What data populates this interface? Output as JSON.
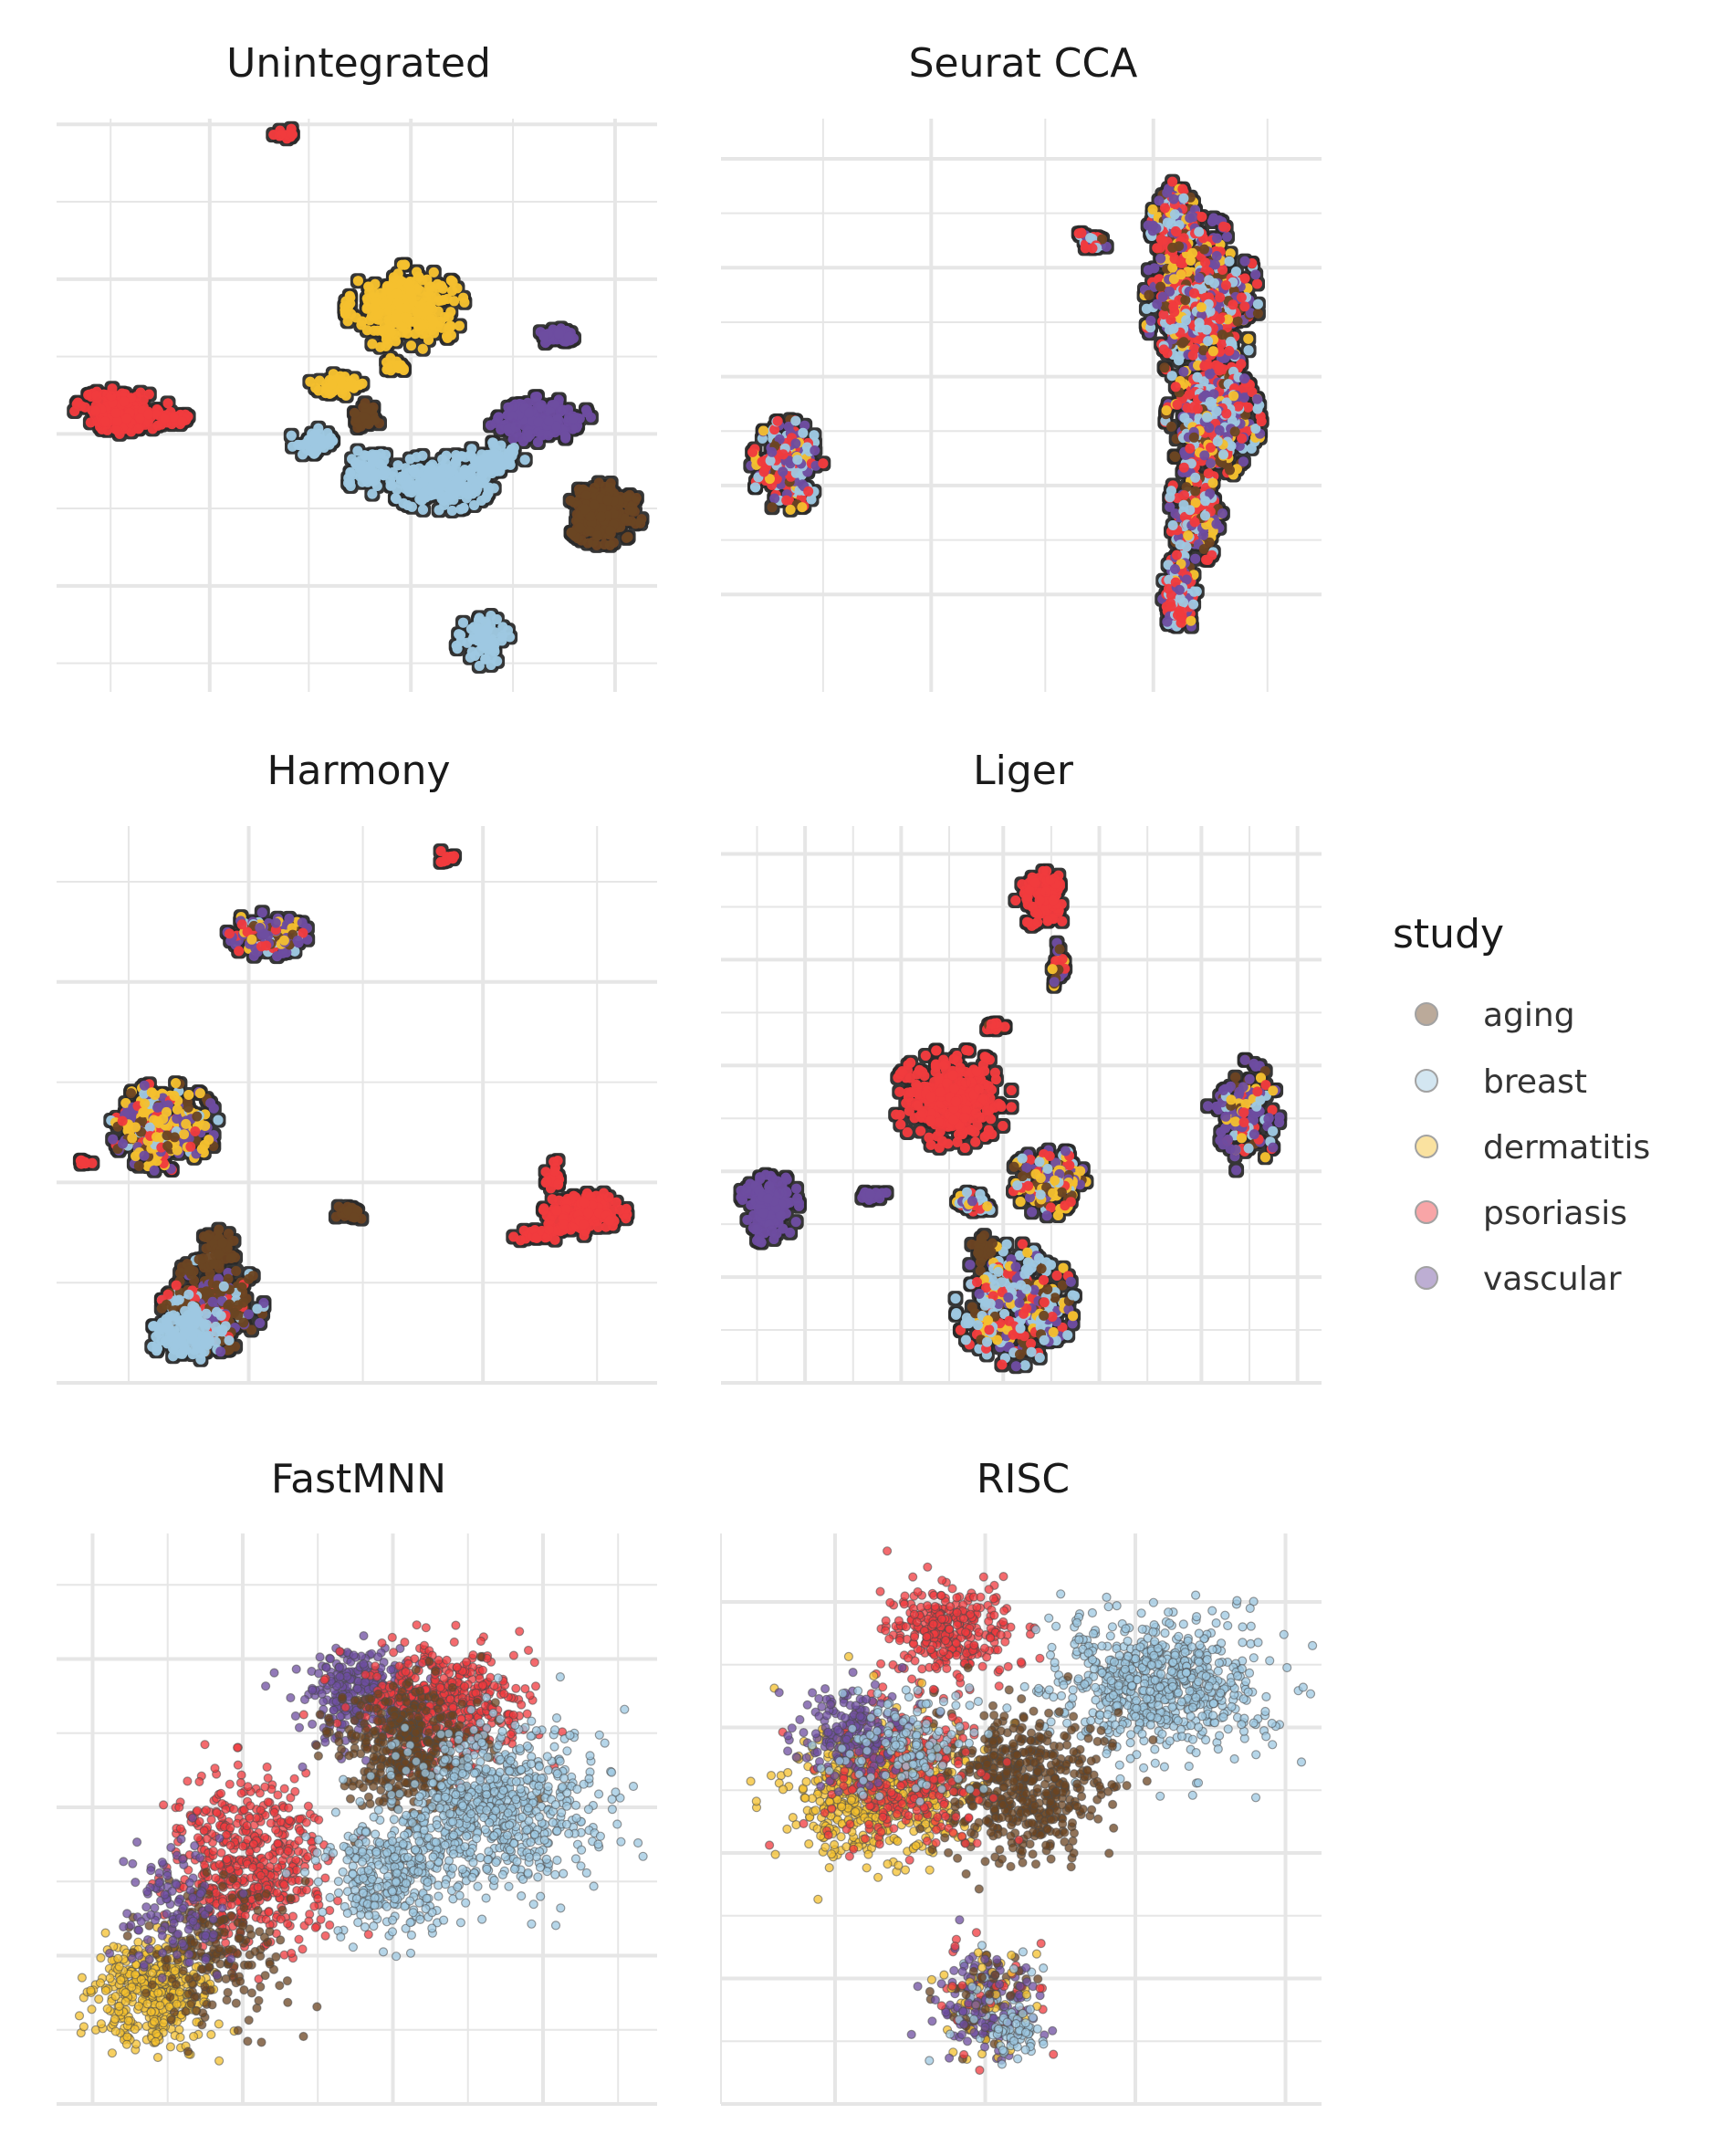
{
  "chart_data": {
    "type": "scatter",
    "description_axes": "UMAP embeddings; axes carry no tick labels",
    "grid": true,
    "legend": {
      "title": "study",
      "placement": "right",
      "entries": [
        {
          "name": "aging",
          "color": "#6b4422"
        },
        {
          "name": "breast",
          "color": "#9ec8e2"
        },
        {
          "name": "dermatitis",
          "color": "#f4c02e"
        },
        {
          "name": "psoriasis",
          "color": "#f03a3e"
        },
        {
          "name": "vascular",
          "color": "#6e4da0"
        }
      ]
    },
    "panels": [
      {
        "title": "Unintegrated",
        "style": "outlined",
        "xlim": [
          0,
          100
        ],
        "ylim": [
          0,
          100
        ],
        "gridx": [
          9,
          25.5,
          42,
          59,
          76,
          93
        ],
        "gridy": [
          5,
          18.5,
          32,
          45,
          58.5,
          72,
          85.5,
          99
        ],
        "majorx": [
          25.5,
          59,
          93
        ],
        "majory": [
          18.5,
          45,
          72,
          99
        ],
        "clusters": [
          {
            "study": "psoriasis",
            "cx": 38,
            "cy": 97.5,
            "rx": 2.5,
            "ry": 1.2,
            "n": 12
          },
          {
            "study": "dermatitis",
            "cx": 58,
            "cy": 67,
            "rx": 10,
            "ry": 7.5,
            "n": 300
          },
          {
            "study": "dermatitis",
            "cx": 47,
            "cy": 53.5,
            "rx": 5,
            "ry": 2,
            "n": 60
          },
          {
            "study": "dermatitis",
            "cx": 56.5,
            "cy": 57,
            "rx": 2.5,
            "ry": 1.3,
            "n": 20
          },
          {
            "study": "vascular",
            "cx": 84,
            "cy": 62,
            "rx": 4,
            "ry": 1.5,
            "n": 40
          },
          {
            "study": "psoriasis",
            "cx": 11,
            "cy": 49,
            "rx": 8,
            "ry": 4,
            "n": 200
          },
          {
            "study": "psoriasis",
            "cx": 20,
            "cy": 47.5,
            "rx": 3,
            "ry": 1,
            "n": 30
          },
          {
            "study": "aging",
            "cx": 51.5,
            "cy": 48,
            "rx": 2.5,
            "ry": 2.5,
            "n": 40
          },
          {
            "study": "vascular",
            "cx": 80.5,
            "cy": 47.5,
            "rx": 8.5,
            "ry": 4,
            "n": 160
          },
          {
            "study": "breast",
            "cx": 43,
            "cy": 43.5,
            "rx": 4.5,
            "ry": 2.5,
            "n": 50
          },
          {
            "study": "breast",
            "cx": 52,
            "cy": 38.5,
            "rx": 4,
            "ry": 4,
            "n": 70
          },
          {
            "study": "breast",
            "cx": 64,
            "cy": 36.5,
            "rx": 9,
            "ry": 5,
            "n": 220
          },
          {
            "study": "breast",
            "cx": 73,
            "cy": 40.5,
            "rx": 5,
            "ry": 3,
            "n": 70
          },
          {
            "study": "aging",
            "cx": 91,
            "cy": 31,
            "rx": 6.5,
            "ry": 5.5,
            "n": 220
          },
          {
            "study": "breast",
            "cx": 71,
            "cy": 9,
            "rx": 4.5,
            "ry": 4.5,
            "n": 70
          }
        ]
      },
      {
        "title": "Seurat CCA",
        "style": "outlined",
        "xlim": [
          0,
          100
        ],
        "ylim": [
          0,
          100
        ],
        "gridx": [
          17,
          35,
          54,
          72,
          91
        ],
        "gridy": [
          17,
          26.5,
          36,
          45.5,
          55,
          64.5,
          74,
          83.5,
          93
        ],
        "majorx": [
          35,
          72
        ],
        "majory": [
          17,
          36,
          55,
          74,
          93
        ],
        "clusters": [
          {
            "study": "mix",
            "cx": 75,
            "cy": 83,
            "rx": 4,
            "ry": 6,
            "n": 160
          },
          {
            "study": "mix",
            "cx": 80,
            "cy": 68,
            "rx": 9.5,
            "ry": 15,
            "n": 600
          },
          {
            "study": "mix",
            "cx": 82,
            "cy": 47,
            "rx": 8,
            "ry": 10,
            "n": 400
          },
          {
            "study": "mix",
            "cx": 79,
            "cy": 31,
            "rx": 4.5,
            "ry": 9,
            "n": 180
          },
          {
            "study": "mix",
            "cx": 76.5,
            "cy": 17,
            "rx": 3,
            "ry": 7,
            "n": 140
          },
          {
            "study": "mix",
            "cx": 62,
            "cy": 78.5,
            "rx": 3,
            "ry": 2.5,
            "n": 30
          },
          {
            "study": "mix",
            "cx": 11,
            "cy": 39.5,
            "rx": 6,
            "ry": 8,
            "n": 220
          }
        ]
      },
      {
        "title": "Harmony",
        "style": "outlined",
        "xlim": [
          0,
          100
        ],
        "ylim": [
          0,
          100
        ],
        "gridx": [
          12,
          32,
          51,
          71,
          90
        ],
        "gridy": [
          0,
          18,
          36,
          54,
          72,
          90
        ],
        "majorx": [
          32,
          71
        ],
        "majory": [
          0,
          36,
          72
        ],
        "clusters": [
          {
            "study": "psoriasis",
            "cx": 65,
            "cy": 94.5,
            "rx": 1.8,
            "ry": 1.2,
            "n": 10
          },
          {
            "study": "mix_vascular",
            "cx": 35,
            "cy": 80.5,
            "rx": 7,
            "ry": 4,
            "n": 140
          },
          {
            "study": "mix_dermatitis",
            "cx": 18,
            "cy": 46,
            "rx": 9,
            "ry": 8,
            "n": 320
          },
          {
            "study": "psoriasis",
            "cx": 5,
            "cy": 39.5,
            "rx": 1.5,
            "ry": 1,
            "n": 8
          },
          {
            "study": "aging",
            "cx": 49,
            "cy": 30.5,
            "rx": 3,
            "ry": 1.5,
            "n": 20
          },
          {
            "study": "psoriasis",
            "cx": 88,
            "cy": 30.5,
            "rx": 7,
            "ry": 4,
            "n": 170
          },
          {
            "study": "psoriasis",
            "cx": 83,
            "cy": 37,
            "rx": 2,
            "ry": 3,
            "n": 20
          },
          {
            "study": "psoriasis",
            "cx": 80,
            "cy": 26.5,
            "rx": 4,
            "ry": 1.2,
            "n": 25
          },
          {
            "study": "mix_aging",
            "cx": 26,
            "cy": 14,
            "rx": 8.5,
            "ry": 8.5,
            "n": 280
          },
          {
            "study": "breast",
            "cx": 22,
            "cy": 9,
            "rx": 7,
            "ry": 5,
            "n": 120
          },
          {
            "study": "aging",
            "cx": 27,
            "cy": 24,
            "rx": 3,
            "ry": 4,
            "n": 40
          }
        ]
      },
      {
        "title": "Liger",
        "style": "outlined",
        "xlim": [
          0,
          100
        ],
        "ylim": [
          0,
          100
        ],
        "gridx": [
          6,
          14,
          22,
          30,
          38,
          47,
          55,
          63,
          71,
          80,
          88,
          96
        ],
        "gridy": [
          0,
          9.5,
          19,
          28.5,
          38,
          47.5,
          57,
          66.5,
          76,
          85.5,
          95
        ],
        "majorx": [
          14,
          30,
          47,
          63,
          80,
          96
        ],
        "majory": [
          0,
          19,
          38,
          57,
          76,
          95
        ],
        "clusters": [
          {
            "study": "psoriasis",
            "cx": 53.5,
            "cy": 87,
            "rx": 4.5,
            "ry": 6,
            "n": 90
          },
          {
            "study": "mix_psoriasis",
            "cx": 56,
            "cy": 75,
            "rx": 1.5,
            "ry": 4,
            "n": 20
          },
          {
            "study": "mix_psoriasis",
            "cx": 46,
            "cy": 64,
            "rx": 2.5,
            "ry": 1.3,
            "n": 12
          },
          {
            "study": "psoriasis",
            "cx": 38.5,
            "cy": 51,
            "rx": 10,
            "ry": 9,
            "n": 300
          },
          {
            "study": "mix_dermatitis",
            "cx": 55,
            "cy": 36,
            "rx": 7,
            "ry": 6,
            "n": 160
          },
          {
            "study": "mix_breast",
            "cx": 42,
            "cy": 32.5,
            "rx": 3.5,
            "ry": 2.5,
            "n": 40
          },
          {
            "study": "mix_breast",
            "cx": 49,
            "cy": 14,
            "rx": 10,
            "ry": 11,
            "n": 320
          },
          {
            "study": "aging",
            "cx": 43.5,
            "cy": 24,
            "rx": 2,
            "ry": 2.5,
            "n": 20
          },
          {
            "study": "vascular",
            "cx": 8,
            "cy": 32,
            "rx": 5,
            "ry": 7,
            "n": 120
          },
          {
            "study": "vascular",
            "cx": 25,
            "cy": 33.5,
            "rx": 3,
            "ry": 1.2,
            "n": 15
          },
          {
            "study": "mix_vascular",
            "cx": 87,
            "cy": 48,
            "rx": 6,
            "ry": 10,
            "n": 130
          }
        ]
      },
      {
        "title": "FastMNN",
        "style": "scatter",
        "xlim": [
          0,
          100
        ],
        "ylim": [
          0,
          100
        ],
        "gridx": [
          6,
          18.5,
          31,
          43.5,
          56,
          68.5,
          81,
          93.5
        ],
        "gridy": [
          0,
          13,
          26,
          39,
          52,
          65,
          78,
          91
        ],
        "majorx": [
          6,
          31,
          56,
          81
        ],
        "majory": [
          0,
          26,
          52,
          78
        ],
        "clusters": [
          {
            "study": "dermatitis",
            "cx": 16,
            "cy": 20,
            "rx": 10,
            "ry": 9,
            "n": 420
          },
          {
            "study": "psoriasis",
            "cx": 32,
            "cy": 42,
            "rx": 12,
            "ry": 14,
            "n": 520
          },
          {
            "study": "vascular",
            "cx": 50,
            "cy": 72,
            "rx": 10,
            "ry": 8,
            "n": 280
          },
          {
            "study": "psoriasis",
            "cx": 64,
            "cy": 70,
            "rx": 13,
            "ry": 10,
            "n": 500
          },
          {
            "study": "aging",
            "cx": 58,
            "cy": 62,
            "rx": 12,
            "ry": 11,
            "n": 380
          },
          {
            "study": "breast",
            "cx": 72,
            "cy": 52,
            "rx": 17,
            "ry": 15,
            "n": 700
          },
          {
            "study": "breast",
            "cx": 55,
            "cy": 40,
            "rx": 11,
            "ry": 10,
            "n": 320
          },
          {
            "study": "aging",
            "cx": 26,
            "cy": 26,
            "rx": 12,
            "ry": 12,
            "n": 180
          },
          {
            "study": "vascular",
            "cx": 20,
            "cy": 34,
            "rx": 9,
            "ry": 12,
            "n": 120
          }
        ]
      },
      {
        "title": "RISC",
        "style": "scatter",
        "xlim": [
          0,
          100
        ],
        "ylim": [
          0,
          100
        ],
        "gridx": [
          0,
          19,
          44,
          69,
          94
        ],
        "gridy": [
          0,
          11,
          22,
          33,
          44,
          55,
          66,
          77,
          88
        ],
        "majorx": [
          19,
          44,
          69,
          94
        ],
        "majory": [
          0,
          22,
          44,
          66,
          88
        ],
        "clusters": [
          {
            "study": "psoriasis",
            "cx": 38,
            "cy": 83,
            "rx": 10,
            "ry": 8,
            "n": 320
          },
          {
            "study": "breast",
            "cx": 73,
            "cy": 73,
            "rx": 18,
            "ry": 12,
            "n": 700
          },
          {
            "study": "dermatitis",
            "cx": 26,
            "cy": 55,
            "rx": 14,
            "ry": 12,
            "n": 620
          },
          {
            "study": "aging",
            "cx": 50,
            "cy": 56,
            "rx": 14,
            "ry": 12,
            "n": 520
          },
          {
            "study": "psoriasis",
            "cx": 30,
            "cy": 58,
            "rx": 13,
            "ry": 12,
            "n": 280
          },
          {
            "study": "vascular",
            "cx": 22,
            "cy": 65,
            "rx": 9,
            "ry": 8,
            "n": 180
          },
          {
            "study": "breast",
            "cx": 30,
            "cy": 63,
            "rx": 11,
            "ry": 9,
            "n": 140
          },
          {
            "study": "mix_vascular",
            "cx": 44,
            "cy": 18,
            "rx": 8.5,
            "ry": 9,
            "n": 300
          },
          {
            "study": "breast",
            "cx": 49,
            "cy": 12,
            "rx": 4,
            "ry": 5,
            "n": 60
          }
        ]
      }
    ]
  }
}
